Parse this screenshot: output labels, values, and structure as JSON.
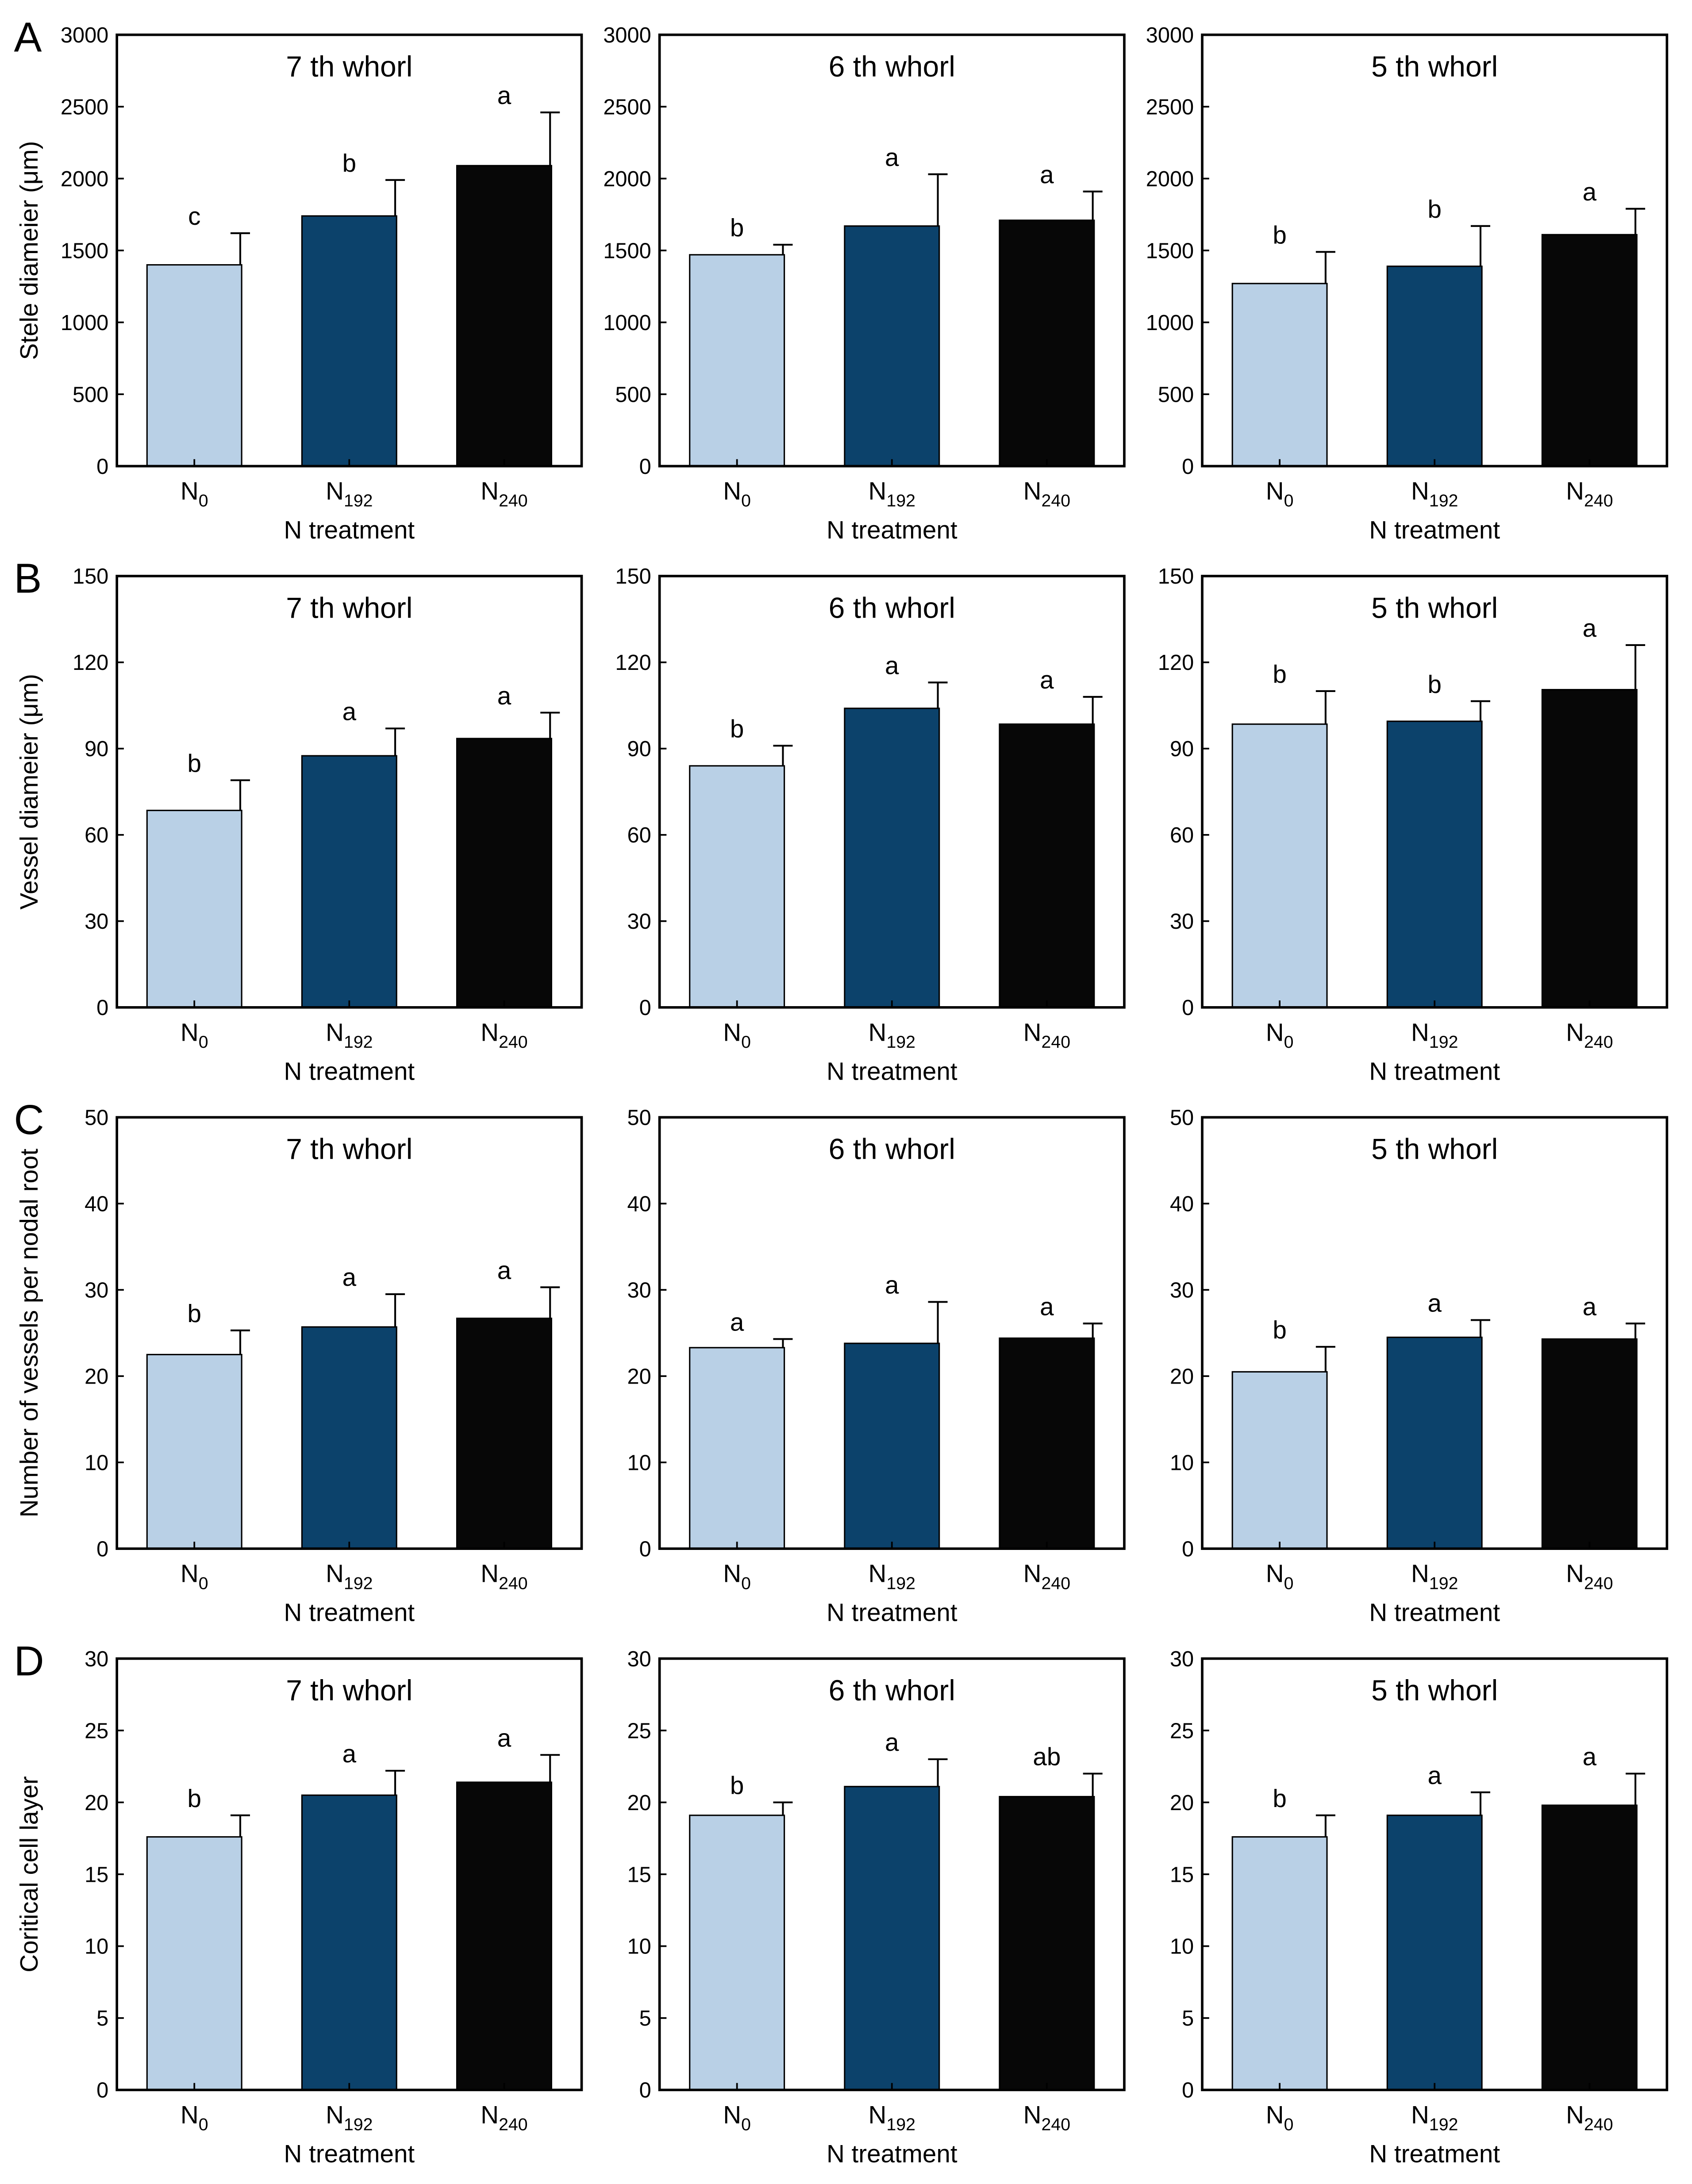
{
  "chart_data": [
    {
      "type": "bar",
      "panel": "A",
      "title": "7 th whorl",
      "ylabel": "Stele diameier (μm)",
      "xlabel": "N treatment",
      "categories": [
        "N0",
        "N192",
        "N240"
      ],
      "values": [
        1400,
        1740,
        2090
      ],
      "errors": [
        220,
        250,
        370
      ],
      "annotations": [
        "c",
        "b",
        "a"
      ],
      "colors": [
        "#b9d0e6",
        "#0c426b",
        "#070707"
      ],
      "ylim": [
        0,
        3000
      ],
      "yticks": [
        0,
        500,
        1000,
        1500,
        2000,
        2500,
        3000
      ]
    },
    {
      "type": "bar",
      "title": "6 th whorl",
      "xlabel": "N treatment",
      "categories": [
        "N0",
        "N192",
        "N240"
      ],
      "values": [
        1470,
        1670,
        1710
      ],
      "errors": [
        70,
        360,
        200
      ],
      "annotations": [
        "b",
        "a",
        "a"
      ],
      "colors": [
        "#b9d0e6",
        "#0c426b",
        "#070707"
      ],
      "ylim": [
        0,
        3000
      ],
      "yticks": [
        0,
        500,
        1000,
        1500,
        2000,
        2500,
        3000
      ]
    },
    {
      "type": "bar",
      "title": "5 th whorl",
      "xlabel": "N treatment",
      "categories": [
        "N0",
        "N192",
        "N240"
      ],
      "values": [
        1270,
        1390,
        1610
      ],
      "errors": [
        220,
        280,
        180
      ],
      "annotations": [
        "b",
        "b",
        "a"
      ],
      "colors": [
        "#b9d0e6",
        "#0c426b",
        "#070707"
      ],
      "ylim": [
        0,
        3000
      ],
      "yticks": [
        0,
        500,
        1000,
        1500,
        2000,
        2500,
        3000
      ]
    },
    {
      "type": "bar",
      "panel": "B",
      "title": "7 th whorl",
      "ylabel": "Vessel diameier (μm)",
      "xlabel": "N treatment",
      "categories": [
        "N0",
        "N192",
        "N240"
      ],
      "values": [
        68.5,
        87.5,
        93.5
      ],
      "errors": [
        10.5,
        9.5,
        9
      ],
      "annotations": [
        "b",
        "a",
        "a"
      ],
      "colors": [
        "#b9d0e6",
        "#0c426b",
        "#070707"
      ],
      "ylim": [
        0,
        150
      ],
      "yticks": [
        0,
        30,
        60,
        90,
        120,
        150
      ]
    },
    {
      "type": "bar",
      "title": "6 th whorl",
      "xlabel": "N treatment",
      "categories": [
        "N0",
        "N192",
        "N240"
      ],
      "values": [
        84,
        104,
        98.5
      ],
      "errors": [
        7,
        9,
        9.5
      ],
      "annotations": [
        "b",
        "a",
        "a"
      ],
      "colors": [
        "#b9d0e6",
        "#0c426b",
        "#070707"
      ],
      "ylim": [
        0,
        150
      ],
      "yticks": [
        0,
        30,
        60,
        90,
        120,
        150
      ]
    },
    {
      "type": "bar",
      "title": "5 th whorl",
      "xlabel": "N treatment",
      "categories": [
        "N0",
        "N192",
        "N240"
      ],
      "values": [
        98.5,
        99.5,
        110.5
      ],
      "errors": [
        11.5,
        7,
        15.5
      ],
      "annotations": [
        "b",
        "b",
        "a"
      ],
      "colors": [
        "#b9d0e6",
        "#0c426b",
        "#070707"
      ],
      "ylim": [
        0,
        150
      ],
      "yticks": [
        0,
        30,
        60,
        90,
        120,
        150
      ]
    },
    {
      "type": "bar",
      "panel": "C",
      "title": "7 th whorl",
      "ylabel": "Number of vessels per nodal root",
      "xlabel": "N treatment",
      "categories": [
        "N0",
        "N192",
        "N240"
      ],
      "values": [
        22.5,
        25.7,
        26.7
      ],
      "errors": [
        2.8,
        3.8,
        3.6
      ],
      "annotations": [
        "b",
        "a",
        "a"
      ],
      "colors": [
        "#b9d0e6",
        "#0c426b",
        "#070707"
      ],
      "ylim": [
        0,
        50
      ],
      "yticks": [
        0,
        10,
        20,
        30,
        40,
        50
      ]
    },
    {
      "type": "bar",
      "title": "6 th whorl",
      "xlabel": "N treatment",
      "categories": [
        "N0",
        "N192",
        "N240"
      ],
      "values": [
        23.3,
        23.8,
        24.4
      ],
      "errors": [
        1,
        4.8,
        1.7
      ],
      "annotations": [
        "a",
        "a",
        "a"
      ],
      "colors": [
        "#b9d0e6",
        "#0c426b",
        "#070707"
      ],
      "ylim": [
        0,
        50
      ],
      "yticks": [
        0,
        10,
        20,
        30,
        40,
        50
      ]
    },
    {
      "type": "bar",
      "title": "5 th whorl",
      "xlabel": "N treatment",
      "categories": [
        "N0",
        "N192",
        "N240"
      ],
      "values": [
        20.5,
        24.5,
        24.3
      ],
      "errors": [
        2.9,
        2,
        1.8
      ],
      "annotations": [
        "b",
        "a",
        "a"
      ],
      "colors": [
        "#b9d0e6",
        "#0c426b",
        "#070707"
      ],
      "ylim": [
        0,
        50
      ],
      "yticks": [
        0,
        10,
        20,
        30,
        40,
        50
      ]
    },
    {
      "type": "bar",
      "panel": "D",
      "title": "7 th whorl",
      "ylabel": "Coritical cell layer",
      "xlabel": "N treatment",
      "categories": [
        "N0",
        "N192",
        "N240"
      ],
      "values": [
        17.6,
        20.5,
        21.4
      ],
      "errors": [
        1.5,
        1.7,
        1.9
      ],
      "annotations": [
        "b",
        "a",
        "a"
      ],
      "colors": [
        "#b9d0e6",
        "#0c426b",
        "#070707"
      ],
      "ylim": [
        0,
        30
      ],
      "yticks": [
        0,
        5,
        10,
        15,
        20,
        25,
        30
      ]
    },
    {
      "type": "bar",
      "title": "6 th whorl",
      "xlabel": "N treatment",
      "categories": [
        "N0",
        "N192",
        "N240"
      ],
      "values": [
        19.1,
        21.1,
        20.4
      ],
      "errors": [
        0.9,
        1.9,
        1.6
      ],
      "annotations": [
        "b",
        "a",
        "ab"
      ],
      "colors": [
        "#b9d0e6",
        "#0c426b",
        "#070707"
      ],
      "ylim": [
        0,
        30
      ],
      "yticks": [
        0,
        5,
        10,
        15,
        20,
        25,
        30
      ]
    },
    {
      "type": "bar",
      "title": "5 th whorl",
      "xlabel": "N treatment",
      "categories": [
        "N0",
        "N192",
        "N240"
      ],
      "values": [
        17.6,
        19.1,
        19.8
      ],
      "errors": [
        1.5,
        1.6,
        2.2
      ],
      "annotations": [
        "b",
        "a",
        "a"
      ],
      "colors": [
        "#b9d0e6",
        "#0c426b",
        "#070707"
      ],
      "ylim": [
        0,
        30
      ],
      "yticks": [
        0,
        5,
        10,
        15,
        20,
        25,
        30
      ]
    }
  ]
}
